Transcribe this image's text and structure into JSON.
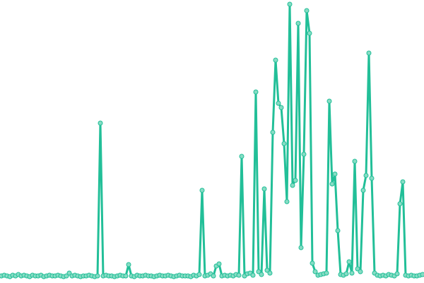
{
  "chart_data": {
    "type": "line",
    "color": "#22bf98",
    "marker_color": "#86dcc4",
    "ylim": [
      0,
      390
    ],
    "values": [
      2,
      3,
      2,
      1,
      3,
      2,
      4,
      2,
      3,
      2,
      1,
      3,
      2,
      2,
      3,
      1,
      2,
      3,
      2,
      2,
      3,
      2,
      1,
      2,
      6,
      2,
      3,
      2,
      1,
      2,
      2,
      3,
      2,
      1,
      2,
      218,
      2,
      3,
      2,
      2,
      1,
      2,
      3,
      2,
      2,
      18,
      2,
      1,
      3,
      2,
      2,
      3,
      2,
      2,
      1,
      2,
      3,
      2,
      2,
      3,
      2,
      1,
      2,
      3,
      2,
      2,
      2,
      1,
      3,
      2,
      4,
      123,
      2,
      3,
      5,
      2,
      16,
      19,
      2,
      3,
      2,
      3,
      2,
      4,
      3,
      171,
      2,
      5,
      6,
      3,
      262,
      8,
      4,
      125,
      10,
      6,
      205,
      307,
      246,
      240,
      189,
      107,
      386,
      130,
      137,
      359,
      42,
      174,
      377,
      345,
      20,
      8,
      3,
      4,
      5,
      6,
      249,
      132,
      146,
      66,
      4,
      3,
      5,
      22,
      6,
      164,
      12,
      8,
      123,
      144,
      317,
      140,
      6,
      3,
      2,
      3,
      2,
      4,
      3,
      2,
      5,
      104,
      135,
      3,
      2,
      3,
      2,
      2,
      3,
      4
    ]
  }
}
